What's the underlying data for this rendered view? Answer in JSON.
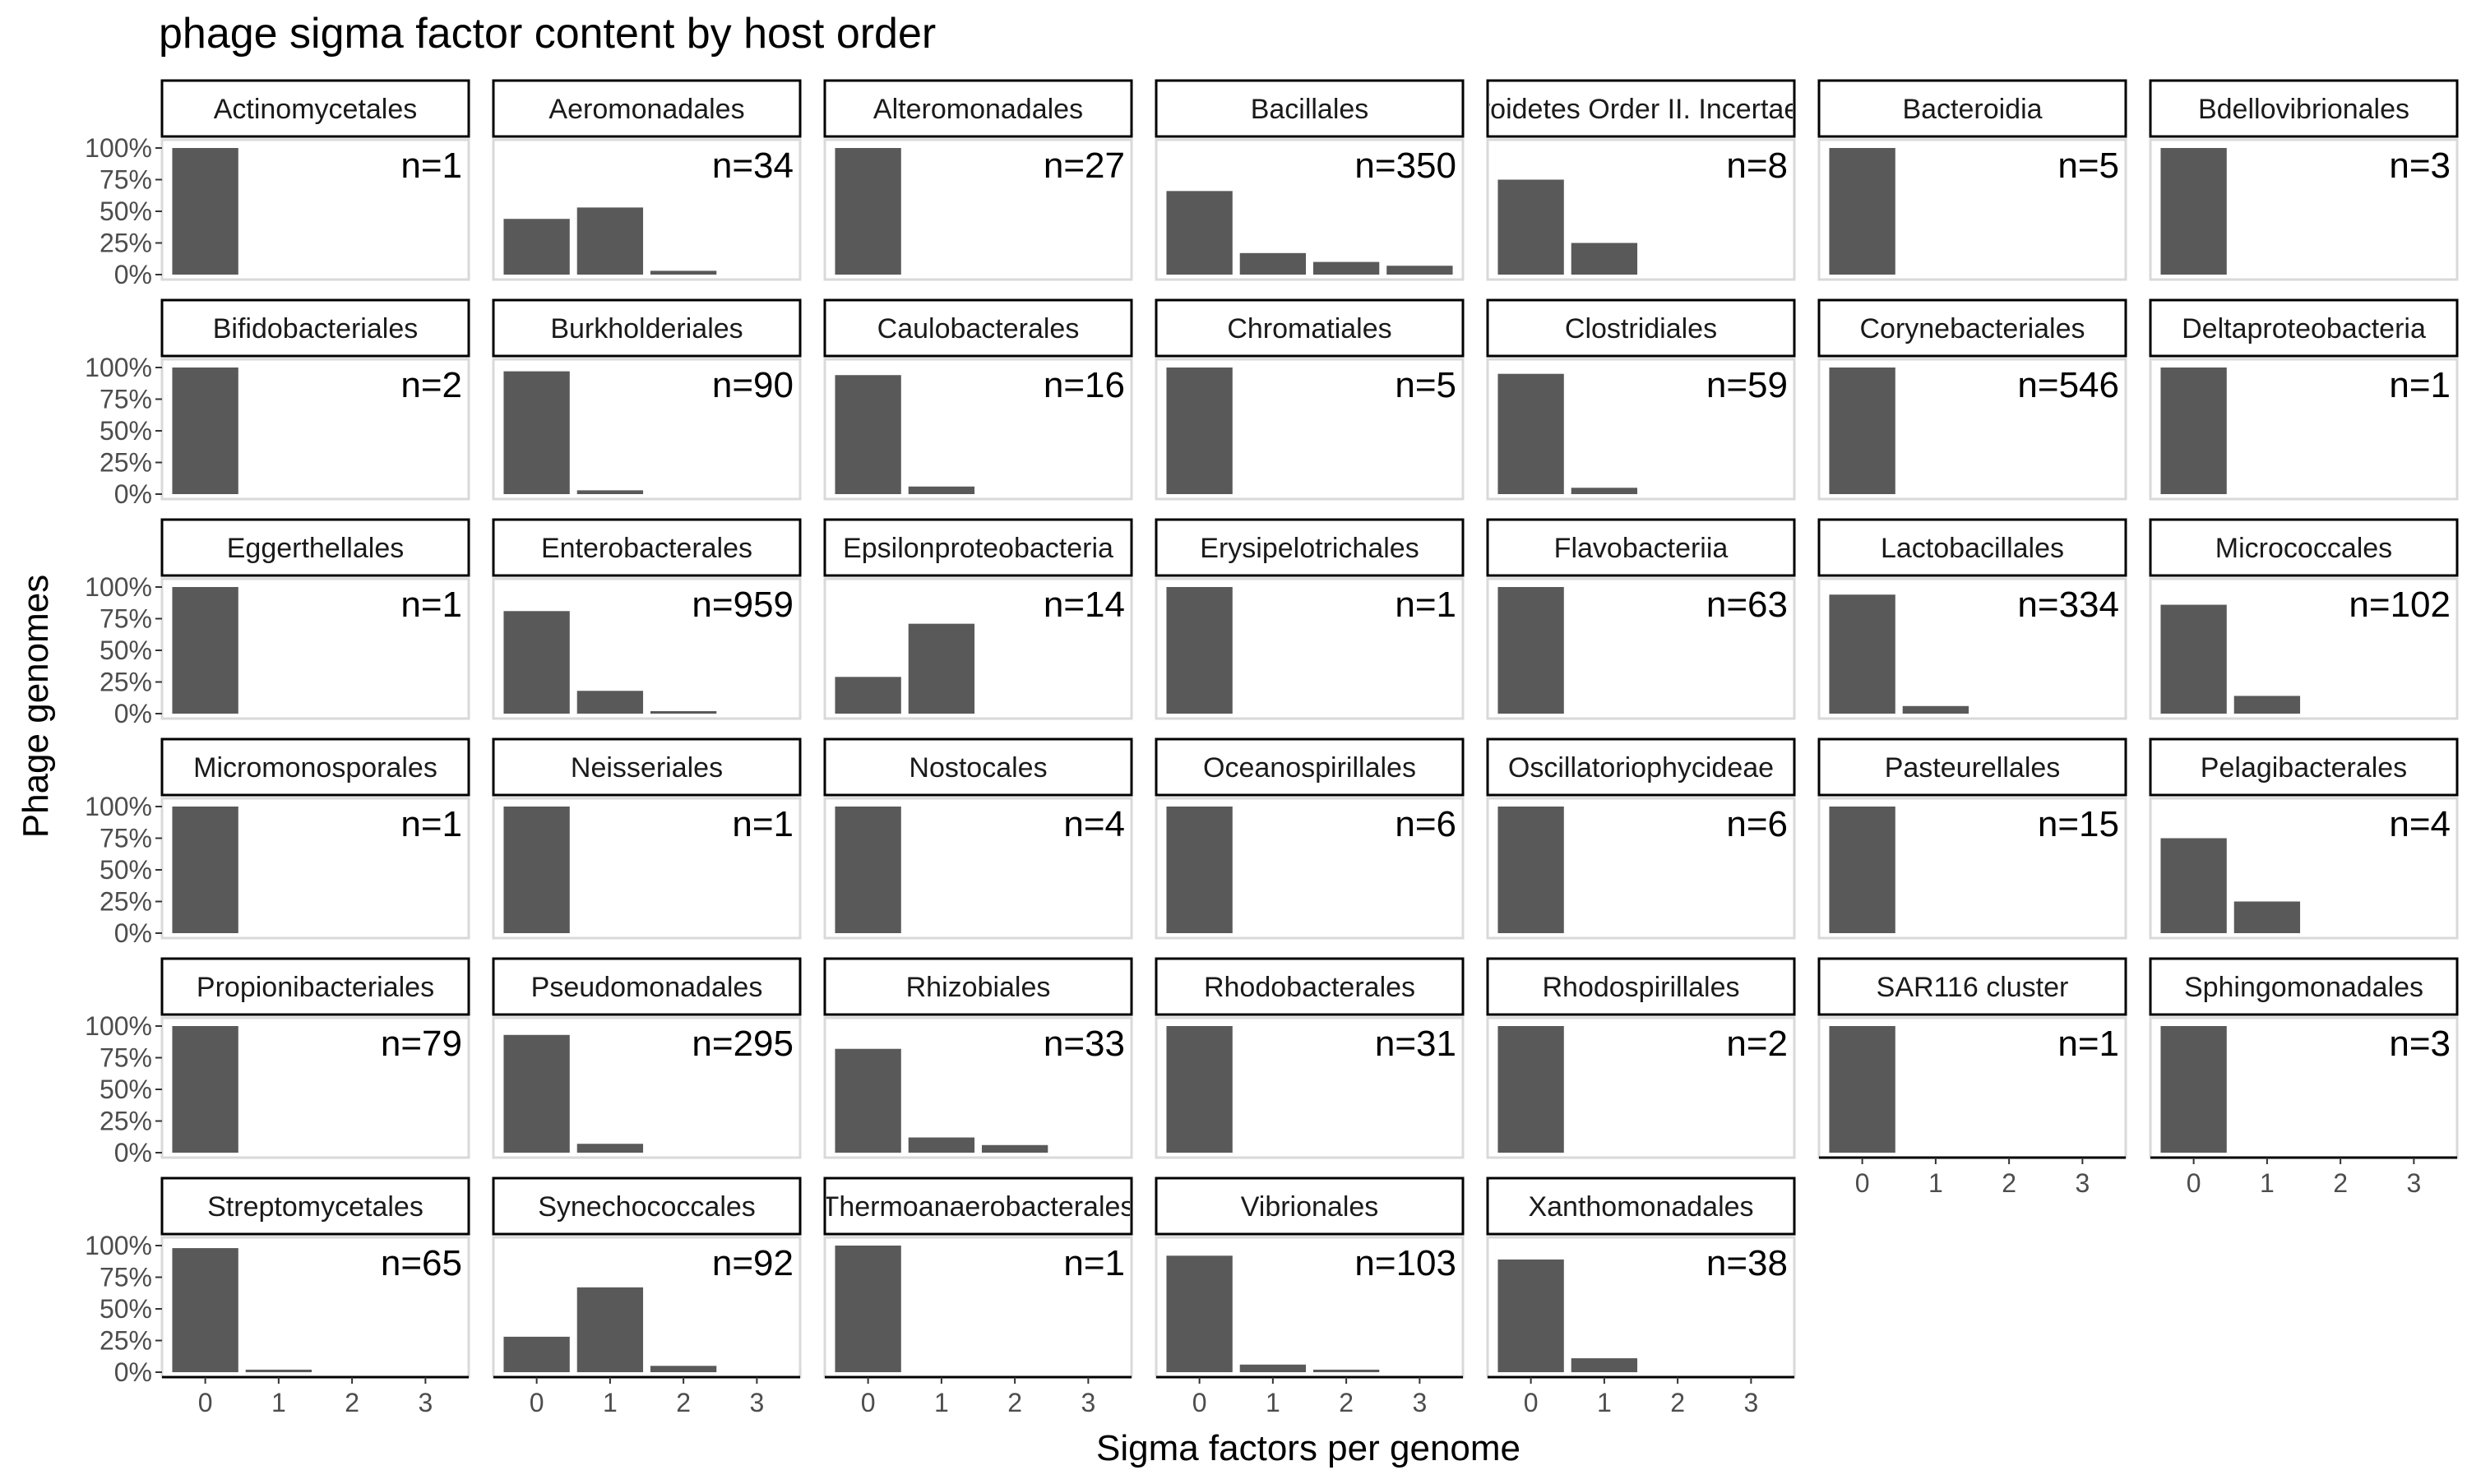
{
  "chart_data": {
    "type": "bar",
    "title": "phage sigma factor content by host order",
    "xlabel": "Sigma factors per genome",
    "ylabel": "Phage genomes",
    "x_ticks": [
      "0",
      "1",
      "2",
      "3"
    ],
    "y_ticks": [
      "0%",
      "25%",
      "50%",
      "75%",
      "100%"
    ],
    "ylim": [
      0,
      1
    ],
    "layout": {
      "ncol": 7,
      "nrow": 6
    },
    "grid": false,
    "bar_color": "#595959",
    "panels": [
      {
        "name": "Actinomycetales",
        "n": "n=1",
        "values": [
          1.0,
          0,
          0,
          0
        ]
      },
      {
        "name": "Aeromonadales",
        "n": "n=34",
        "values": [
          0.44,
          0.53,
          0.03,
          0
        ]
      },
      {
        "name": "Alteromonadales",
        "n": "n=27",
        "values": [
          1.0,
          0,
          0,
          0
        ]
      },
      {
        "name": "Bacillales",
        "n": "n=350",
        "values": [
          0.66,
          0.17,
          0.1,
          0.07
        ]
      },
      {
        "name": "Bacteroidetes Order II. Incertae sedis",
        "n": "n=8",
        "values": [
          0.75,
          0.25,
          0,
          0
        ]
      },
      {
        "name": "Bacteroidia",
        "n": "n=5",
        "values": [
          1.0,
          0,
          0,
          0
        ]
      },
      {
        "name": "Bdellovibrionales",
        "n": "n=3",
        "values": [
          1.0,
          0,
          0,
          0
        ]
      },
      {
        "name": "Bifidobacteriales",
        "n": "n=2",
        "values": [
          1.0,
          0,
          0,
          0
        ]
      },
      {
        "name": "Burkholderiales",
        "n": "n=90",
        "values": [
          0.97,
          0.03,
          0,
          0
        ]
      },
      {
        "name": "Caulobacterales",
        "n": "n=16",
        "values": [
          0.94,
          0.06,
          0,
          0
        ]
      },
      {
        "name": "Chromatiales",
        "n": "n=5",
        "values": [
          1.0,
          0,
          0,
          0
        ]
      },
      {
        "name": "Clostridiales",
        "n": "n=59",
        "values": [
          0.95,
          0.05,
          0,
          0
        ]
      },
      {
        "name": "Corynebacteriales",
        "n": "n=546",
        "values": [
          1.0,
          0,
          0,
          0
        ]
      },
      {
        "name": "Deltaproteobacteria",
        "n": "n=1",
        "values": [
          1.0,
          0,
          0,
          0
        ]
      },
      {
        "name": "Eggerthellales",
        "n": "n=1",
        "values": [
          1.0,
          0,
          0,
          0
        ]
      },
      {
        "name": "Enterobacterales",
        "n": "n=959",
        "values": [
          0.81,
          0.18,
          0.01,
          0
        ]
      },
      {
        "name": "Epsilonproteobacteria",
        "n": "n=14",
        "values": [
          0.29,
          0.71,
          0,
          0
        ]
      },
      {
        "name": "Erysipelotrichales",
        "n": "n=1",
        "values": [
          1.0,
          0,
          0,
          0
        ]
      },
      {
        "name": "Flavobacteriia",
        "n": "n=63",
        "values": [
          1.0,
          0,
          0,
          0
        ]
      },
      {
        "name": "Lactobacillales",
        "n": "n=334",
        "values": [
          0.94,
          0.06,
          0,
          0
        ]
      },
      {
        "name": "Micrococcales",
        "n": "n=102",
        "values": [
          0.86,
          0.14,
          0,
          0
        ]
      },
      {
        "name": "Micromonosporales",
        "n": "n=1",
        "values": [
          1.0,
          0,
          0,
          0
        ]
      },
      {
        "name": "Neisseriales",
        "n": "n=1",
        "values": [
          1.0,
          0,
          0,
          0
        ]
      },
      {
        "name": "Nostocales",
        "n": "n=4",
        "values": [
          1.0,
          0,
          0,
          0
        ]
      },
      {
        "name": "Oceanospirillales",
        "n": "n=6",
        "values": [
          1.0,
          0,
          0,
          0
        ]
      },
      {
        "name": "Oscillatoriophycideae",
        "n": "n=6",
        "values": [
          1.0,
          0,
          0,
          0
        ]
      },
      {
        "name": "Pasteurellales",
        "n": "n=15",
        "values": [
          1.0,
          0,
          0,
          0
        ]
      },
      {
        "name": "Pelagibacterales",
        "n": "n=4",
        "values": [
          0.75,
          0.25,
          0,
          0
        ]
      },
      {
        "name": "Propionibacteriales",
        "n": "n=79",
        "values": [
          1.0,
          0,
          0,
          0
        ]
      },
      {
        "name": "Pseudomonadales",
        "n": "n=295",
        "values": [
          0.93,
          0.07,
          0,
          0
        ]
      },
      {
        "name": "Rhizobiales",
        "n": "n=33",
        "values": [
          0.82,
          0.12,
          0.06,
          0
        ]
      },
      {
        "name": "Rhodobacterales",
        "n": "n=31",
        "values": [
          1.0,
          0,
          0,
          0
        ]
      },
      {
        "name": "Rhodospirillales",
        "n": "n=2",
        "values": [
          1.0,
          0,
          0,
          0
        ]
      },
      {
        "name": "SAR116 cluster",
        "n": "n=1",
        "values": [
          1.0,
          0,
          0,
          0
        ]
      },
      {
        "name": "Sphingomonadales",
        "n": "n=3",
        "values": [
          1.0,
          0,
          0,
          0
        ]
      },
      {
        "name": "Streptomycetales",
        "n": "n=65",
        "values": [
          0.98,
          0.02,
          0,
          0
        ]
      },
      {
        "name": "Synechococcales",
        "n": "n=92",
        "values": [
          0.28,
          0.67,
          0.05,
          0
        ]
      },
      {
        "name": "Thermoanaerobacterales",
        "n": "n=1",
        "values": [
          1.0,
          0,
          0,
          0
        ]
      },
      {
        "name": "Vibrionales",
        "n": "n=103",
        "values": [
          0.92,
          0.06,
          0.02,
          0
        ]
      },
      {
        "name": "Xanthomonadales",
        "n": "n=38",
        "values": [
          0.89,
          0.11,
          0,
          0
        ]
      }
    ]
  }
}
